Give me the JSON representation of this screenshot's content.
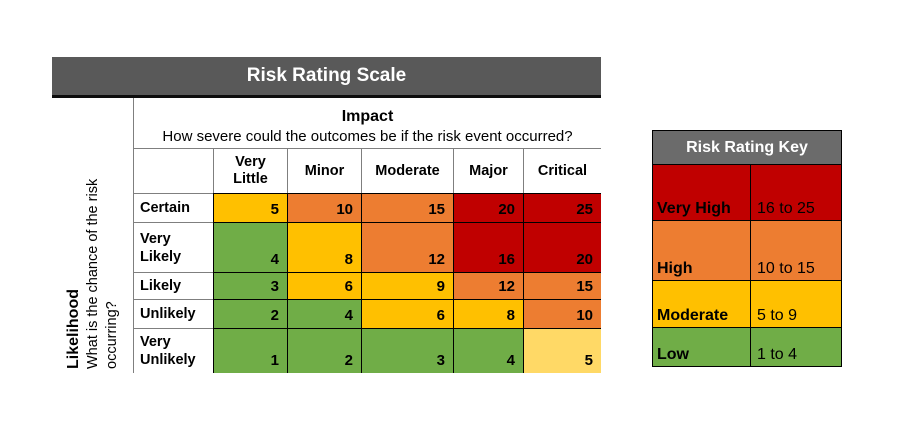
{
  "chart_data": {
    "type": "heatmap",
    "title": "Risk Rating Scale",
    "x_axis": {
      "label": "Impact",
      "question": "How severe could the outcomes be if the risk event occurred?",
      "categories": [
        "Very Little",
        "Minor",
        "Moderate",
        "Major",
        "Critical"
      ]
    },
    "y_axis": {
      "label": "Likelihood",
      "question": "What is the chance of the risk occurring?",
      "categories": [
        "Certain",
        "Very Likely",
        "Likely",
        "Unlikely",
        "Very Unlikely"
      ]
    },
    "values": [
      [
        5,
        10,
        15,
        20,
        25
      ],
      [
        4,
        8,
        12,
        16,
        20
      ],
      [
        3,
        6,
        9,
        12,
        15
      ],
      [
        2,
        4,
        6,
        8,
        10
      ],
      [
        1,
        2,
        3,
        4,
        5
      ]
    ],
    "levels": [
      [
        "moderate",
        "high",
        "high",
        "very_high",
        "very_high"
      ],
      [
        "low",
        "moderate",
        "high",
        "very_high",
        "very_high"
      ],
      [
        "low",
        "moderate",
        "moderate",
        "high",
        "high"
      ],
      [
        "low",
        "low",
        "moderate",
        "moderate",
        "high"
      ],
      [
        "low",
        "low",
        "low",
        "low",
        "moderate_light"
      ]
    ],
    "key": {
      "title": "Risk Rating Key",
      "entries": [
        {
          "label": "Very High",
          "range": "16 to 25",
          "level": "very_high"
        },
        {
          "label": "High",
          "range": "10 to 15",
          "level": "high"
        },
        {
          "label": "Moderate",
          "range": "5 to 9",
          "level": "moderate"
        },
        {
          "label": "Low",
          "range": "1 to 4",
          "level": "low"
        }
      ]
    },
    "colors": {
      "very_high": "#C00000",
      "high": "#ED7D31",
      "moderate": "#FFC000",
      "moderate_light": "#FFD966",
      "low": "#70AD47",
      "title_bar": "#595959",
      "key_header": "#6B6B6B",
      "text_on_dark": "#FFFFFF"
    },
    "legend_position": "right",
    "grid": true
  }
}
